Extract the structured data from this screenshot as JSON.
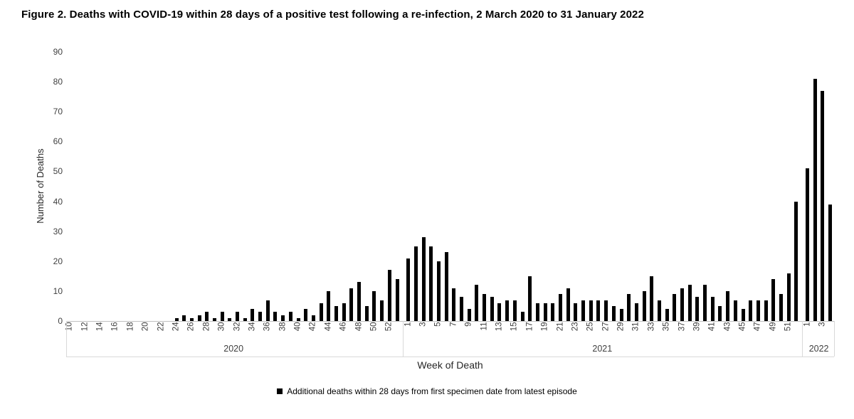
{
  "figure_title": "Figure 2. Deaths with COVID-19 within 28 days of a positive test following a re-infection, 2 March 2020 to 31 January 2022",
  "chart_data": {
    "type": "bar",
    "title": "Figure 2. Deaths with COVID-19 within 28 days of a positive test following a re-infection, 2 March 2020 to 31 January 2022",
    "xlabel": "Week of Death",
    "ylabel": "Number of Deaths",
    "ylim": [
      0,
      90
    ],
    "yticks": [
      0,
      10,
      20,
      30,
      40,
      50,
      60,
      70,
      80,
      90
    ],
    "grid": false,
    "bar_color": "#000000",
    "axis_line_color": "#bfbfbf",
    "legend": {
      "label": "Additional deaths within 28 days from first specimen date from latest episode",
      "position": "bottom-center",
      "marker": "square",
      "marker_color": "#000000"
    },
    "x_axis_note": "weekly bars grouped by year; every second week labeled; labels rotated 90 degrees",
    "series": [
      {
        "year": "2020",
        "first_week": 10,
        "weeks": [
          10,
          11,
          12,
          13,
          14,
          15,
          16,
          17,
          18,
          19,
          20,
          21,
          22,
          23,
          24,
          25,
          26,
          27,
          28,
          29,
          30,
          31,
          32,
          33,
          34,
          35,
          36,
          37,
          38,
          39,
          40,
          41,
          42,
          43,
          44,
          45,
          46,
          47,
          48,
          49,
          50,
          51,
          52,
          53
        ],
        "values": [
          0,
          0,
          0,
          0,
          0,
          0,
          0,
          0,
          0,
          0,
          0,
          0,
          0,
          0,
          1,
          2,
          1,
          2,
          3,
          1,
          3,
          1,
          3,
          1,
          4,
          3,
          7,
          3,
          2,
          3,
          1,
          4,
          2,
          6,
          10,
          5,
          6,
          11,
          13,
          5,
          10,
          7,
          17,
          14
        ],
        "tick_labels": [
          10,
          12,
          14,
          16,
          18,
          20,
          22,
          24,
          26,
          28,
          30,
          32,
          34,
          36,
          38,
          40,
          42,
          44,
          46,
          48,
          50,
          52
        ]
      },
      {
        "year": "2021",
        "first_week": 1,
        "weeks": [
          1,
          2,
          3,
          4,
          5,
          6,
          7,
          8,
          9,
          10,
          11,
          12,
          13,
          14,
          15,
          16,
          17,
          18,
          19,
          20,
          21,
          22,
          23,
          24,
          25,
          26,
          27,
          28,
          29,
          30,
          31,
          32,
          33,
          34,
          35,
          36,
          37,
          38,
          39,
          40,
          41,
          42,
          43,
          44,
          45,
          46,
          47,
          48,
          49,
          50,
          51,
          52
        ],
        "values": [
          21,
          25,
          28,
          25,
          20,
          23,
          11,
          8,
          4,
          12,
          9,
          8,
          6,
          7,
          7,
          3,
          15,
          6,
          6,
          6,
          9,
          11,
          6,
          7,
          7,
          7,
          7,
          5,
          4,
          9,
          6,
          10,
          15,
          7,
          4,
          9,
          11,
          12,
          8,
          12,
          8,
          5,
          10,
          7,
          4,
          7,
          7,
          7,
          14,
          9,
          16,
          40
        ],
        "tick_labels": [
          1,
          3,
          5,
          7,
          9,
          11,
          13,
          15,
          17,
          19,
          21,
          23,
          25,
          27,
          29,
          31,
          33,
          35,
          37,
          39,
          41,
          43,
          45,
          47,
          49,
          51
        ]
      },
      {
        "year": "2022",
        "first_week": 1,
        "weeks": [
          1,
          2,
          3,
          4
        ],
        "values": [
          51,
          81,
          77,
          39
        ],
        "tick_labels": [
          1,
          3
        ]
      }
    ]
  }
}
